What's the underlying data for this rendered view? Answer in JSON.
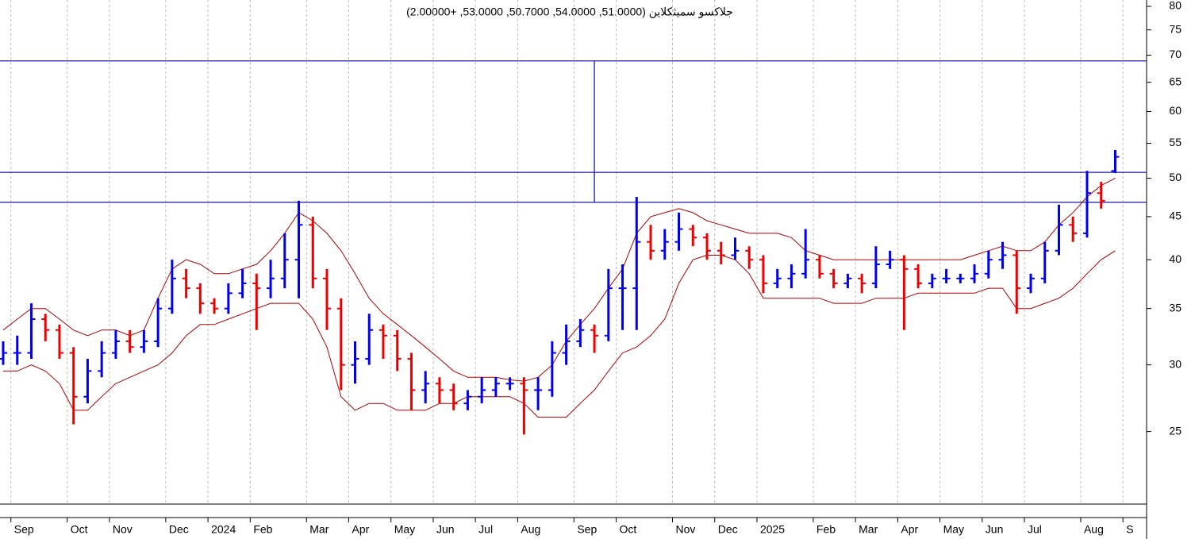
{
  "chart_data": {
    "type": "ohlc",
    "title": "جلاكسو سميثكلاين (51.0000, 54.0000, 50.7000, 53.0000, +2.00000)",
    "categories": [
      null,
      "Sep",
      null,
      null,
      null,
      "Oct",
      null,
      null,
      "Nov",
      null,
      null,
      null,
      "Dec",
      null,
      null,
      "2024",
      null,
      null,
      "Feb",
      null,
      null,
      null,
      "Mar",
      null,
      null,
      "Apr",
      null,
      null,
      "May",
      null,
      null,
      "Jun",
      null,
      null,
      "Jul",
      null,
      null,
      "Aug",
      null,
      null,
      null,
      "Sep",
      null,
      null,
      "Oct",
      null,
      null,
      null,
      "Nov",
      null,
      null,
      "Dec",
      null,
      null,
      "2025",
      null,
      null,
      null,
      "Feb",
      null,
      null,
      "Mar",
      null,
      null,
      "Apr",
      null,
      null,
      "May",
      null,
      null,
      "Jun",
      null,
      null,
      "Jul",
      null,
      null,
      null,
      "Aug",
      null,
      null,
      "S"
    ],
    "open": [
      30.5,
      31,
      31,
      34,
      33,
      31,
      27.5,
      29.5,
      31,
      32,
      31.5,
      32,
      35,
      38,
      37,
      35.5,
      35,
      36.5,
      37.5,
      37,
      38,
      40,
      44,
      38,
      35,
      30,
      30.5,
      33,
      32.5,
      30.5,
      28,
      28.5,
      28,
      27,
      27.5,
      28,
      28.5,
      28.5,
      28,
      28,
      31,
      32,
      33,
      32.5,
      37,
      37,
      42,
      41,
      42,
      43.5,
      42.5,
      41,
      40.5,
      41,
      40,
      37.5,
      38,
      38.5,
      40,
      38.5,
      37.5,
      38,
      37.5,
      39.5,
      40,
      39,
      37.5,
      38,
      38,
      38,
      38.5,
      40,
      40.5,
      37,
      38,
      41,
      44,
      43,
      48,
      51,
      null
    ],
    "high": [
      32,
      32.5,
      35.5,
      34.5,
      33.5,
      31.5,
      30.5,
      32,
      33,
      33,
      33,
      36,
      40,
      39,
      37.5,
      36,
      37.5,
      39,
      38.5,
      40,
      43,
      47,
      45,
      39,
      36,
      32,
      34.5,
      33.5,
      33,
      31,
      29.5,
      29,
      28.5,
      28,
      29,
      29,
      29,
      29,
      29,
      32,
      33.5,
      34,
      33.5,
      39,
      39.5,
      47.5,
      44,
      43.5,
      45.5,
      44,
      43,
      42,
      42.5,
      41.5,
      40.5,
      39,
      39.5,
      43.5,
      40.5,
      39,
      38.5,
      38.5,
      41.5,
      41,
      40.5,
      39.5,
      38.5,
      39,
      38.5,
      39.5,
      41,
      42,
      41,
      38.5,
      42,
      46.5,
      45,
      51,
      49.5,
      54,
      null
    ],
    "low": [
      30,
      30,
      30.5,
      32,
      30.5,
      25.5,
      27,
      29,
      30.5,
      31,
      31,
      31.5,
      34.5,
      36,
      34.5,
      34.5,
      34.5,
      36,
      33,
      36,
      37,
      36,
      37,
      33,
      28,
      28.5,
      30,
      30.5,
      29.5,
      26.5,
      27,
      27,
      26.5,
      26.5,
      27,
      27.5,
      28,
      24.8,
      26.5,
      27.5,
      30,
      31.5,
      31,
      32,
      33,
      33,
      40,
      40,
      41,
      41.5,
      40,
      39.5,
      40,
      39,
      36.5,
      37,
      37,
      38,
      38,
      37,
      37,
      36.5,
      37,
      39,
      33,
      37,
      37,
      37.5,
      37.5,
      37.5,
      38,
      39,
      34.5,
      36.5,
      37.5,
      40.5,
      42,
      42.5,
      46,
      50.7,
      null
    ],
    "close": [
      31,
      31,
      34,
      33,
      31,
      27.5,
      29.5,
      31,
      32,
      31.5,
      32,
      35,
      38,
      37,
      35.5,
      35,
      36.5,
      37.5,
      37,
      38,
      40,
      44,
      38,
      35,
      30,
      30.5,
      33,
      32.5,
      30.5,
      28,
      28.5,
      28,
      27,
      27.5,
      28,
      28.5,
      28.5,
      28,
      28,
      31,
      32,
      33,
      32.5,
      37,
      37,
      42,
      41,
      42,
      43.5,
      42.5,
      41,
      40.5,
      41,
      40,
      37.5,
      38,
      38.5,
      40,
      38.5,
      37.5,
      38,
      37.5,
      39.5,
      40,
      39,
      37.5,
      38,
      38,
      38,
      38.5,
      40,
      40.5,
      37,
      38,
      41,
      44,
      43,
      48,
      47,
      53,
      null
    ],
    "upper_band": [
      33,
      34,
      35,
      35,
      34,
      33,
      32.5,
      33,
      33,
      32.5,
      33,
      36,
      39,
      40,
      39.5,
      38.5,
      38.5,
      39,
      39.5,
      41,
      43,
      45.5,
      44.5,
      43,
      41,
      38.5,
      36,
      34.5,
      33.5,
      32.5,
      31.5,
      30.5,
      29.5,
      29,
      29,
      29,
      28.8,
      28.7,
      29,
      30,
      32,
      33.5,
      35,
      37,
      39,
      43,
      45,
      45.5,
      46,
      45.5,
      44.5,
      44,
      43.5,
      43,
      43,
      43,
      42.5,
      41,
      40.5,
      40,
      40,
      40,
      40,
      40,
      40,
      40,
      40,
      40,
      40,
      40.5,
      41,
      41.5,
      41,
      41,
      42,
      44,
      45.5,
      47.5,
      49,
      50,
      null
    ],
    "lower_band": [
      29.5,
      29.5,
      30,
      29.5,
      28.5,
      26.5,
      26.5,
      27.5,
      28.5,
      29,
      29.5,
      30,
      31,
      32.5,
      33.5,
      33.5,
      34,
      34.5,
      35,
      35.5,
      35.5,
      35.5,
      34,
      31.5,
      27.5,
      26.5,
      27,
      27,
      26.5,
      26.5,
      26.5,
      27,
      27,
      27.5,
      27.5,
      27.5,
      27.5,
      27,
      26,
      26,
      26,
      27,
      28,
      29.5,
      31,
      31.5,
      32.5,
      34,
      37.5,
      40,
      40.5,
      40.5,
      40,
      38.5,
      36,
      36,
      36,
      36,
      36,
      35.5,
      35.5,
      35.5,
      36,
      36,
      36,
      36.5,
      36.5,
      36.5,
      36.5,
      36.5,
      37,
      37,
      35,
      35,
      35.5,
      36,
      37,
      38.5,
      40,
      41,
      null
    ],
    "up_color": "#0000ee",
    "down_color": "#ee0000",
    "band_color": "#aa0000",
    "line_color": "#1a1aaa",
    "hlines": [
      68.9,
      50.8,
      46.8
    ],
    "vline": {
      "at": 42,
      "from": 46.8,
      "to": 68.9
    },
    "log_y": true,
    "ylim": [
      20.5,
      81.4
    ],
    "yticks": [
      25,
      30,
      35,
      40,
      45,
      50,
      55,
      60,
      65,
      70,
      75,
      80
    ],
    "grid": true
  }
}
